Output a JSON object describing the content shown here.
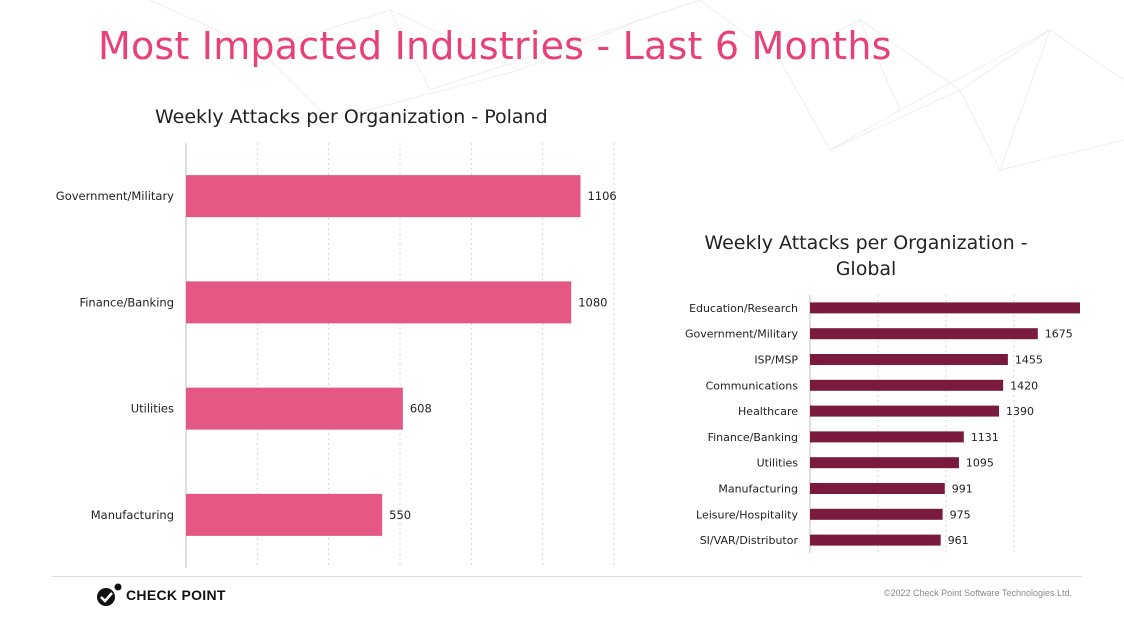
{
  "slide_title": "Most Impacted Industries - Last 6 Months",
  "footer": {
    "logo_text": "CHECK POINT",
    "copyright": "©2022 Check Point Software Technologies Ltd."
  },
  "colors": {
    "title": "#e8417a",
    "poland_bar": "#e55884",
    "global_bar": "#7a1a3c"
  },
  "chart_data": [
    {
      "type": "bar",
      "orientation": "horizontal",
      "title": "Weekly Attacks per Organization - Poland",
      "categories": [
        "Government/Military",
        "Finance/Banking",
        "Utilities",
        "Manufacturing"
      ],
      "values": [
        1106,
        1080,
        608,
        550
      ],
      "xlim": [
        0,
        1200
      ],
      "grid": true,
      "data_labels": true
    },
    {
      "type": "bar",
      "orientation": "horizontal",
      "title_lines": [
        "Weekly Attacks per Organization -",
        "Global"
      ],
      "categories": [
        "Education/Research",
        "Government/Military",
        "ISP/MSP",
        "Communications",
        "Healthcare",
        "Finance/Banking",
        "Utilities",
        "Manufacturing",
        "Leisure/Hospitality",
        "SI/VAR/Distributor"
      ],
      "values": [
        2291,
        1675,
        1455,
        1420,
        1390,
        1131,
        1095,
        991,
        975,
        961
      ],
      "xlim": [
        0,
        3000
      ],
      "grid": true,
      "data_labels": true
    }
  ]
}
